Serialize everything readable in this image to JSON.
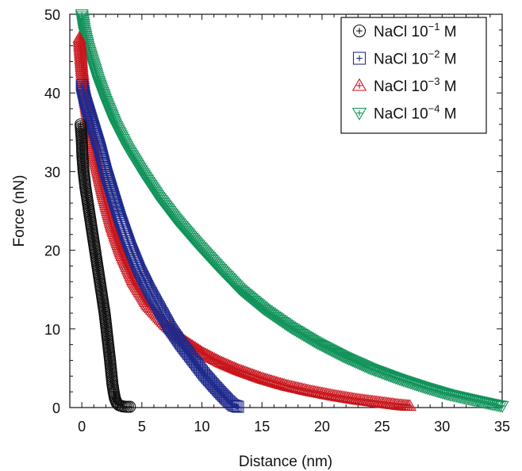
{
  "chart_data": {
    "type": "scatter",
    "title": "",
    "xlabel": "Distance (nm)",
    "ylabel": "Force (nN)",
    "xlim": [
      -1,
      35
    ],
    "ylim": [
      0,
      50
    ],
    "x_ticks": [
      0,
      5,
      10,
      15,
      20,
      25,
      30,
      35
    ],
    "y_ticks": [
      0,
      10,
      20,
      30,
      40,
      50
    ],
    "x_tick_labels": [
      "0",
      "5",
      "10",
      "15",
      "20",
      "25",
      "30",
      "35"
    ],
    "y_tick_labels": [
      "0",
      "10",
      "20",
      "30",
      "40",
      "50"
    ],
    "grid": false,
    "legend_position": "top-right",
    "series": [
      {
        "name_prefix": "NaCl 10",
        "exponent": "−1",
        "name_suffix": " M",
        "color": "#111111",
        "marker": "circle-plus",
        "x": [
          -0.1,
          0.0,
          0.05,
          0.15,
          0.3,
          0.5,
          0.7,
          0.9,
          1.1,
          1.3,
          1.5,
          1.7,
          1.9,
          2.05,
          2.2,
          2.35,
          2.45,
          2.55,
          2.65,
          2.75,
          2.9,
          3.1,
          3.4,
          3.7,
          4.0
        ],
        "y": [
          36,
          34,
          32,
          30,
          28,
          26,
          24,
          22,
          20,
          18,
          16,
          14,
          12,
          10,
          8,
          6,
          4.5,
          3,
          2,
          1.2,
          0.6,
          0.3,
          0.15,
          0.1,
          0.1
        ]
      },
      {
        "name_prefix": "NaCl 10",
        "exponent": "−2",
        "name_suffix": " M",
        "color": "#1f2a8c",
        "marker": "square-plus",
        "x": [
          0.0,
          0.3,
          0.7,
          1.1,
          1.5,
          2.0,
          2.6,
          3.2,
          4.0,
          4.8,
          5.6,
          6.5,
          7.4,
          8.3,
          9.3,
          10.2,
          11.0,
          11.6,
          12.1,
          12.6,
          13.0
        ],
        "y": [
          41,
          39,
          37,
          35,
          33,
          30,
          27,
          24,
          20.5,
          17.5,
          15,
          12.5,
          10,
          8,
          6,
          4.2,
          2.8,
          1.8,
          1.0,
          0.3,
          0.1
        ]
      },
      {
        "name_prefix": "NaCl 10",
        "exponent": "−3",
        "name_suffix": " M",
        "color": "#c8141b",
        "marker": "triangle-plus",
        "x": [
          -0.2,
          0.0,
          0.3,
          0.7,
          1.2,
          1.8,
          2.5,
          3.3,
          4.3,
          5.5,
          7.0,
          8.5,
          10.0,
          11.5,
          13.0,
          15.0,
          17.0,
          19.0,
          21.0,
          23.0,
          25.0,
          26.5,
          27.3
        ],
        "y": [
          47,
          43,
          39,
          35,
          31,
          27,
          23,
          19.5,
          16,
          13,
          10.5,
          8.5,
          7.0,
          5.8,
          4.8,
          3.7,
          2.8,
          2.1,
          1.5,
          1.0,
          0.6,
          0.3,
          0.2
        ]
      },
      {
        "name_prefix": "NaCl 10",
        "exponent": "−4",
        "name_suffix": " M",
        "color": "#11935a",
        "marker": "triangle-down-plus",
        "x": [
          0.0,
          0.2,
          0.5,
          0.9,
          1.4,
          2.0,
          2.8,
          3.8,
          5.0,
          6.3,
          7.8,
          9.5,
          11.3,
          13.2,
          15.2,
          17.3,
          19.5,
          21.8,
          24.0,
          26.3,
          28.5,
          30.5,
          32.5,
          34.0,
          35.0
        ],
        "y": [
          50,
          48,
          46,
          44,
          41.5,
          39,
          36,
          33,
          30,
          27,
          24,
          21,
          18,
          15,
          12.5,
          10.3,
          8.3,
          6.5,
          5.0,
          3.7,
          2.6,
          1.7,
          1.0,
          0.5,
          0.2
        ]
      }
    ]
  }
}
